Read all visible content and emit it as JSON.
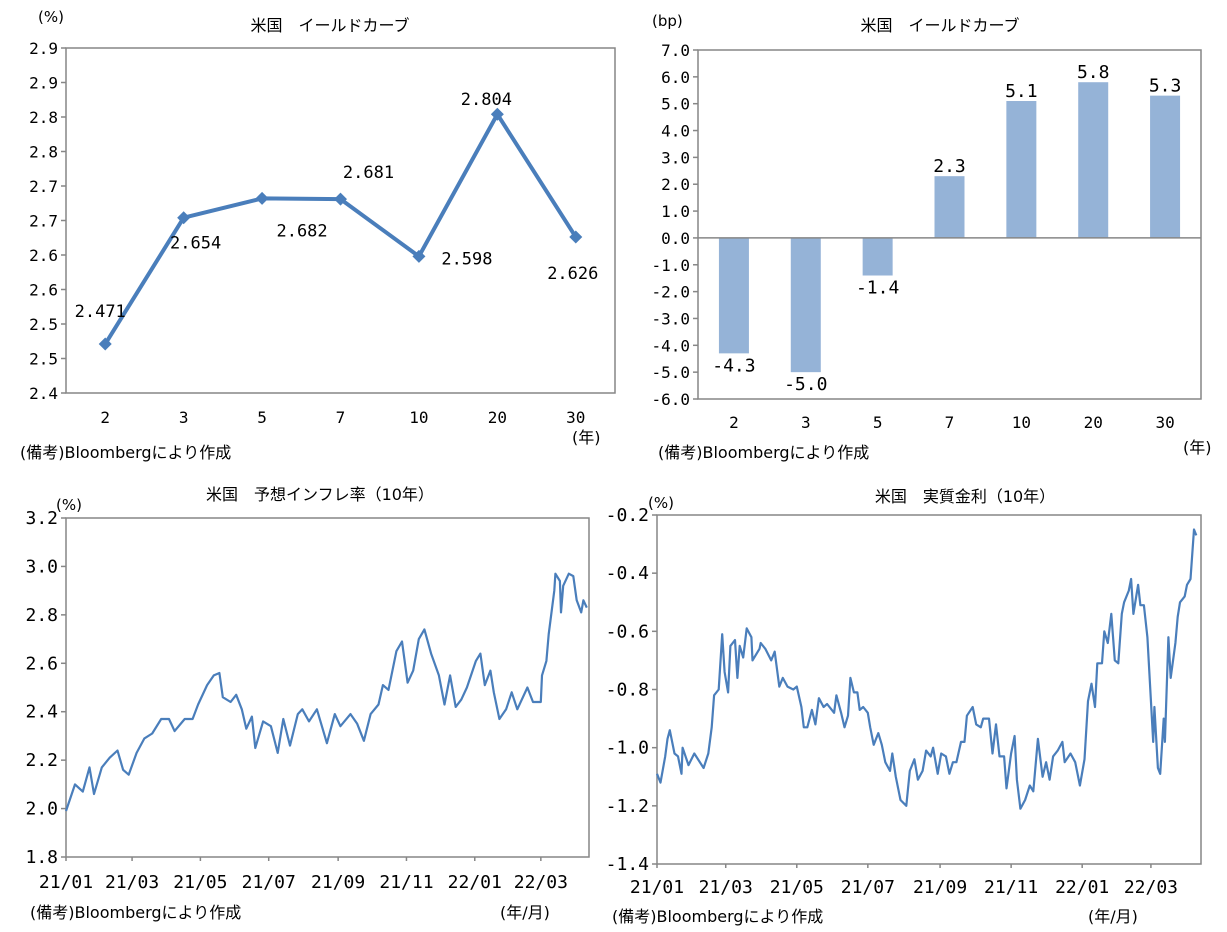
{
  "colors": {
    "line": "#4a7ebb",
    "bar": "#95b3d7",
    "axis": "#868686",
    "text": "#000000"
  },
  "chart_data": [
    {
      "type": "line",
      "title": "米国　イールドカーブ",
      "ylabel": "(%)",
      "xlabel": "(年)",
      "source": "(備考)Bloombergにより作成",
      "categories": [
        "2",
        "3",
        "5",
        "7",
        "10",
        "20",
        "30"
      ],
      "values": [
        2.471,
        2.654,
        2.682,
        2.681,
        2.598,
        2.804,
        2.626
      ],
      "data_labels": [
        "2.471",
        "2.654",
        "2.682",
        "2.681",
        "2.598",
        "2.804",
        "2.626"
      ],
      "ylim": [
        2.4,
        2.9
      ],
      "yticks": [
        2.4,
        2.45,
        2.5,
        2.55,
        2.6,
        2.65,
        2.7,
        2.75,
        2.8,
        2.85,
        2.9
      ],
      "ytick_labels": [
        "2.4",
        "2.5",
        "2.5",
        "2.6",
        "2.6",
        "2.7",
        "2.7",
        "2.8",
        "2.8",
        "2.9",
        "2.9"
      ],
      "marker": "diamond",
      "grid": false
    },
    {
      "type": "bar",
      "title": "米国　イールドカーブ",
      "ylabel": "(bp)",
      "xlabel": "(年)",
      "source": "(備考)Bloombergにより作成",
      "categories": [
        "2",
        "3",
        "5",
        "7",
        "10",
        "20",
        "30"
      ],
      "values": [
        -4.3,
        -5.0,
        -1.4,
        2.3,
        5.1,
        5.8,
        5.3
      ],
      "data_labels": [
        "-4.3",
        "-5.0",
        "-1.4",
        "2.3",
        "5.1",
        "5.8",
        "5.3"
      ],
      "ylim": [
        -6,
        7
      ],
      "ytick_labels": [
        "-6.0",
        "-5.0",
        "-4.0",
        "-3.0",
        "-2.0",
        "-1.0",
        "0.0",
        "1.0",
        "2.0",
        "3.0",
        "4.0",
        "5.0",
        "6.0",
        "7.0"
      ],
      "grid": false
    },
    {
      "type": "line",
      "title": "米国　予想インフレ率（10年）",
      "ylabel": "(%)",
      "xlabel": "(年/月)",
      "source": "(備考)Bloombergにより作成",
      "ylim": [
        1.8,
        3.2
      ],
      "ytick_labels": [
        "1.8",
        "2.0",
        "2.2",
        "2.4",
        "2.6",
        "2.8",
        "3.0",
        "3.2"
      ],
      "xtick_labels": [
        "21/01",
        "21/03",
        "21/05",
        "21/07",
        "21/09",
        "21/11",
        "22/01",
        "22/03"
      ],
      "xtick_dates": [
        "2021-01-01",
        "2021-03-01",
        "2021-05-01",
        "2021-07-01",
        "2021-09-01",
        "2021-11-01",
        "2022-01-01",
        "2022-03-01"
      ],
      "grid": false,
      "points": [
        [
          "2021-01-01",
          1.99
        ],
        [
          "2021-01-09",
          2.1
        ],
        [
          "2021-01-16",
          2.07
        ],
        [
          "2021-01-22",
          2.17
        ],
        [
          "2021-01-26",
          2.06
        ],
        [
          "2021-02-02",
          2.17
        ],
        [
          "2021-02-09",
          2.21
        ],
        [
          "2021-02-16",
          2.24
        ],
        [
          "2021-02-21",
          2.16
        ],
        [
          "2021-02-26",
          2.14
        ],
        [
          "2021-03-05",
          2.23
        ],
        [
          "2021-03-12",
          2.29
        ],
        [
          "2021-03-19",
          2.31
        ],
        [
          "2021-03-27",
          2.37
        ],
        [
          "2021-04-03",
          2.37
        ],
        [
          "2021-04-08",
          2.32
        ],
        [
          "2021-04-17",
          2.37
        ],
        [
          "2021-04-24",
          2.37
        ],
        [
          "2021-04-29",
          2.43
        ],
        [
          "2021-05-07",
          2.51
        ],
        [
          "2021-05-13",
          2.55
        ],
        [
          "2021-05-18",
          2.56
        ],
        [
          "2021-05-21",
          2.46
        ],
        [
          "2021-05-28",
          2.44
        ],
        [
          "2021-06-02",
          2.47
        ],
        [
          "2021-06-07",
          2.41
        ],
        [
          "2021-06-11",
          2.33
        ],
        [
          "2021-06-16",
          2.38
        ],
        [
          "2021-06-19",
          2.25
        ],
        [
          "2021-06-26",
          2.36
        ],
        [
          "2021-07-03",
          2.34
        ],
        [
          "2021-07-09",
          2.23
        ],
        [
          "2021-07-14",
          2.37
        ],
        [
          "2021-07-20",
          2.26
        ],
        [
          "2021-07-27",
          2.39
        ],
        [
          "2021-07-31",
          2.41
        ],
        [
          "2021-08-06",
          2.36
        ],
        [
          "2021-08-13",
          2.41
        ],
        [
          "2021-08-22",
          2.27
        ],
        [
          "2021-08-29",
          2.39
        ],
        [
          "2021-09-03",
          2.34
        ],
        [
          "2021-09-12",
          2.39
        ],
        [
          "2021-09-18",
          2.35
        ],
        [
          "2021-09-24",
          2.28
        ],
        [
          "2021-09-30",
          2.39
        ],
        [
          "2021-10-07",
          2.43
        ],
        [
          "2021-10-11",
          2.51
        ],
        [
          "2021-10-16",
          2.49
        ],
        [
          "2021-10-23",
          2.65
        ],
        [
          "2021-10-28",
          2.69
        ],
        [
          "2021-11-02",
          2.52
        ],
        [
          "2021-11-07",
          2.57
        ],
        [
          "2021-11-12",
          2.7
        ],
        [
          "2021-11-17",
          2.74
        ],
        [
          "2021-11-23",
          2.64
        ],
        [
          "2021-11-30",
          2.55
        ],
        [
          "2021-12-05",
          2.43
        ],
        [
          "2021-12-10",
          2.55
        ],
        [
          "2021-12-15",
          2.42
        ],
        [
          "2021-12-20",
          2.45
        ],
        [
          "2021-12-25",
          2.5
        ],
        [
          "2022-01-02",
          2.61
        ],
        [
          "2022-01-06",
          2.64
        ],
        [
          "2022-01-10",
          2.51
        ],
        [
          "2022-01-15",
          2.57
        ],
        [
          "2022-01-18",
          2.48
        ],
        [
          "2022-01-23",
          2.37
        ],
        [
          "2022-01-29",
          2.41
        ],
        [
          "2022-02-03",
          2.48
        ],
        [
          "2022-02-08",
          2.41
        ],
        [
          "2022-02-17",
          2.5
        ],
        [
          "2022-02-22",
          2.44
        ],
        [
          "2022-02-25",
          2.44
        ],
        [
          "2022-03-01",
          2.44
        ],
        [
          "2022-03-02",
          2.55
        ],
        [
          "2022-03-06",
          2.61
        ],
        [
          "2022-03-08",
          2.72
        ],
        [
          "2022-03-13",
          2.9
        ],
        [
          "2022-03-14",
          2.97
        ],
        [
          "2022-03-18",
          2.94
        ],
        [
          "2022-03-19",
          2.81
        ],
        [
          "2022-03-21",
          2.92
        ],
        [
          "2022-03-26",
          2.97
        ],
        [
          "2022-03-30",
          2.96
        ],
        [
          "2022-04-02",
          2.86
        ],
        [
          "2022-04-06",
          2.81
        ],
        [
          "2022-04-08",
          2.86
        ],
        [
          "2022-04-11",
          2.83
        ]
      ]
    },
    {
      "type": "line",
      "title": "米国　実質金利（10年）",
      "ylabel": "(%)",
      "xlabel": "(年/月)",
      "source": "(備考)Bloombergにより作成",
      "ylim": [
        -1.4,
        -0.2
      ],
      "ytick_labels": [
        "-1.4",
        "-1.2",
        "-1.0",
        "-0.8",
        "-0.6",
        "-0.4",
        "-0.2"
      ],
      "xtick_labels": [
        "21/01",
        "21/03",
        "21/05",
        "21/07",
        "21/09",
        "21/11",
        "22/01",
        "22/03"
      ],
      "xtick_dates": [
        "2021-01-01",
        "2021-03-01",
        "2021-05-01",
        "2021-07-01",
        "2021-09-01",
        "2021-11-01",
        "2022-01-01",
        "2022-03-01"
      ],
      "grid": false,
      "points": [
        [
          "2021-01-01",
          -1.09
        ],
        [
          "2021-01-04",
          -1.12
        ],
        [
          "2021-01-08",
          -1.03
        ],
        [
          "2021-01-10",
          -0.97
        ],
        [
          "2021-01-12",
          -0.94
        ],
        [
          "2021-01-16",
          -1.02
        ],
        [
          "2021-01-19",
          -1.03
        ],
        [
          "2021-01-22",
          -1.09
        ],
        [
          "2021-01-23",
          -1.0
        ],
        [
          "2021-01-28",
          -1.06
        ],
        [
          "2021-02-02",
          -1.02
        ],
        [
          "2021-02-10",
          -1.07
        ],
        [
          "2021-02-14",
          -1.02
        ],
        [
          "2021-02-17",
          -0.93
        ],
        [
          "2021-02-19",
          -0.82
        ],
        [
          "2021-02-23",
          -0.8
        ],
        [
          "2021-02-26",
          -0.61
        ],
        [
          "2021-02-28",
          -0.74
        ],
        [
          "2021-03-03",
          -0.81
        ],
        [
          "2021-03-05",
          -0.65
        ],
        [
          "2021-03-09",
          -0.63
        ],
        [
          "2021-03-11",
          -0.76
        ],
        [
          "2021-03-13",
          -0.65
        ],
        [
          "2021-03-16",
          -0.69
        ],
        [
          "2021-03-19",
          -0.59
        ],
        [
          "2021-03-23",
          -0.62
        ],
        [
          "2021-03-24",
          -0.7
        ],
        [
          "2021-03-30",
          -0.66
        ],
        [
          "2021-03-31",
          -0.64
        ],
        [
          "2021-04-04",
          -0.66
        ],
        [
          "2021-04-09",
          -0.7
        ],
        [
          "2021-04-12",
          -0.67
        ],
        [
          "2021-04-16",
          -0.79
        ],
        [
          "2021-04-19",
          -0.76
        ],
        [
          "2021-04-23",
          -0.79
        ],
        [
          "2021-04-28",
          -0.8
        ],
        [
          "2021-05-01",
          -0.79
        ],
        [
          "2021-05-05",
          -0.86
        ],
        [
          "2021-05-07",
          -0.93
        ],
        [
          "2021-05-10",
          -0.93
        ],
        [
          "2021-05-14",
          -0.87
        ],
        [
          "2021-05-17",
          -0.92
        ],
        [
          "2021-05-20",
          -0.83
        ],
        [
          "2021-05-24",
          -0.86
        ],
        [
          "2021-05-27",
          -0.85
        ],
        [
          "2021-06-02",
          -0.88
        ],
        [
          "2021-06-04",
          -0.82
        ],
        [
          "2021-06-08",
          -0.88
        ],
        [
          "2021-06-11",
          -0.93
        ],
        [
          "2021-06-14",
          -0.89
        ],
        [
          "2021-06-16",
          -0.76
        ],
        [
          "2021-06-19",
          -0.81
        ],
        [
          "2021-06-22",
          -0.81
        ],
        [
          "2021-06-24",
          -0.87
        ],
        [
          "2021-06-27",
          -0.86
        ],
        [
          "2021-07-01",
          -0.88
        ],
        [
          "2021-07-03",
          -0.93
        ],
        [
          "2021-07-06",
          -0.99
        ],
        [
          "2021-07-10",
          -0.95
        ],
        [
          "2021-07-13",
          -0.99
        ],
        [
          "2021-07-16",
          -1.05
        ],
        [
          "2021-07-20",
          -1.08
        ],
        [
          "2021-07-22",
          -1.02
        ],
        [
          "2021-07-25",
          -1.1
        ],
        [
          "2021-07-29",
          -1.18
        ],
        [
          "2021-08-03",
          -1.2
        ],
        [
          "2021-08-06",
          -1.08
        ],
        [
          "2021-08-10",
          -1.04
        ],
        [
          "2021-08-13",
          -1.11
        ],
        [
          "2021-08-17",
          -1.08
        ],
        [
          "2021-08-20",
          -1.01
        ],
        [
          "2021-08-24",
          -1.03
        ],
        [
          "2021-08-26",
          -1.0
        ],
        [
          "2021-08-30",
          -1.09
        ],
        [
          "2021-09-02",
          -1.02
        ],
        [
          "2021-09-06",
          -1.03
        ],
        [
          "2021-09-09",
          -1.09
        ],
        [
          "2021-09-12",
          -1.05
        ],
        [
          "2021-09-15",
          -1.05
        ],
        [
          "2021-09-19",
          -0.98
        ],
        [
          "2021-09-22",
          -0.98
        ],
        [
          "2021-09-24",
          -0.89
        ],
        [
          "2021-09-29",
          -0.86
        ],
        [
          "2021-10-02",
          -0.92
        ],
        [
          "2021-10-06",
          -0.93
        ],
        [
          "2021-10-08",
          -0.9
        ],
        [
          "2021-10-13",
          -0.9
        ],
        [
          "2021-10-16",
          -1.02
        ],
        [
          "2021-10-19",
          -0.92
        ],
        [
          "2021-10-22",
          -1.03
        ],
        [
          "2021-10-26",
          -1.03
        ],
        [
          "2021-10-28",
          -1.14
        ],
        [
          "2021-11-01",
          -1.02
        ],
        [
          "2021-11-04",
          -0.96
        ],
        [
          "2021-11-06",
          -1.11
        ],
        [
          "2021-11-09",
          -1.21
        ],
        [
          "2021-11-13",
          -1.18
        ],
        [
          "2021-11-17",
          -1.13
        ],
        [
          "2021-11-20",
          -1.15
        ],
        [
          "2021-11-24",
          -0.97
        ],
        [
          "2021-11-28",
          -1.1
        ],
        [
          "2021-12-01",
          -1.05
        ],
        [
          "2021-12-04",
          -1.11
        ],
        [
          "2021-12-07",
          -1.03
        ],
        [
          "2021-12-11",
          -1.01
        ],
        [
          "2021-12-15",
          -0.98
        ],
        [
          "2021-12-17",
          -1.05
        ],
        [
          "2021-12-22",
          -1.02
        ],
        [
          "2021-12-26",
          -1.05
        ],
        [
          "2021-12-30",
          -1.13
        ],
        [
          "2022-01-03",
          -1.04
        ],
        [
          "2022-01-06",
          -0.84
        ],
        [
          "2022-01-09",
          -0.78
        ],
        [
          "2022-01-12",
          -0.86
        ],
        [
          "2022-01-14",
          -0.71
        ],
        [
          "2022-01-18",
          -0.71
        ],
        [
          "2022-01-20",
          -0.6
        ],
        [
          "2022-01-23",
          -0.64
        ],
        [
          "2022-01-26",
          -0.54
        ],
        [
          "2022-01-29",
          -0.7
        ],
        [
          "2022-02-01",
          -0.71
        ],
        [
          "2022-02-04",
          -0.54
        ],
        [
          "2022-02-06",
          -0.5
        ],
        [
          "2022-02-10",
          -0.46
        ],
        [
          "2022-02-12",
          -0.42
        ],
        [
          "2022-02-14",
          -0.54
        ],
        [
          "2022-02-18",
          -0.44
        ],
        [
          "2022-02-20",
          -0.51
        ],
        [
          "2022-02-23",
          -0.51
        ],
        [
          "2022-02-26",
          -0.62
        ],
        [
          "2022-03-03",
          -0.98
        ],
        [
          "2022-03-04",
          -0.86
        ],
        [
          "2022-03-07",
          -1.07
        ],
        [
          "2022-03-09",
          -1.09
        ],
        [
          "2022-03-12",
          -0.9
        ],
        [
          "2022-03-13",
          -0.98
        ],
        [
          "2022-03-16",
          -0.62
        ],
        [
          "2022-03-18",
          -0.76
        ],
        [
          "2022-03-22",
          -0.64
        ],
        [
          "2022-03-24",
          -0.55
        ],
        [
          "2022-03-26",
          -0.5
        ],
        [
          "2022-03-30",
          -0.48
        ],
        [
          "2022-04-01",
          -0.44
        ],
        [
          "2022-04-04",
          -0.42
        ],
        [
          "2022-04-07",
          -0.25
        ],
        [
          "2022-04-09",
          -0.27
        ]
      ]
    }
  ]
}
